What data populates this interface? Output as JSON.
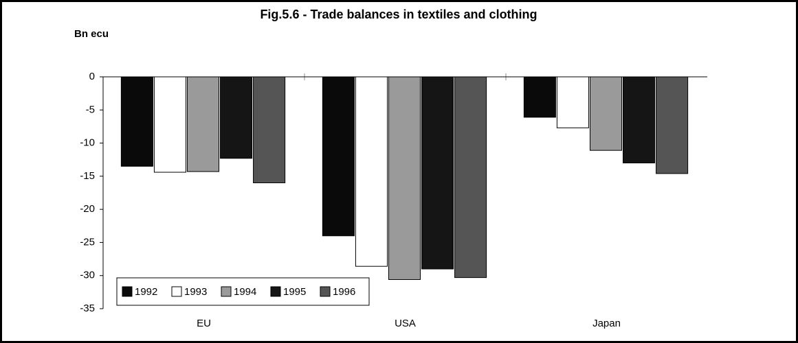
{
  "chart_data": {
    "type": "bar",
    "title": "Fig.5.6 - Trade balances in textiles and clothing",
    "ylabel": "Bn ecu",
    "categories": [
      "EU",
      "USA",
      "Japan"
    ],
    "series": [
      {
        "name": "1992",
        "color": "#0a0a0a",
        "values": [
          -13.5,
          -24.0,
          -6.1
        ]
      },
      {
        "name": "1993",
        "color": "#ffffff",
        "values": [
          -14.4,
          -28.6,
          -7.7
        ]
      },
      {
        "name": "1994",
        "color": "#9a9a9a",
        "values": [
          -14.3,
          -30.6,
          -11.1
        ]
      },
      {
        "name": "1995",
        "color": "#151515",
        "values": [
          -12.3,
          -29.0,
          -13.0
        ]
      },
      {
        "name": "1996",
        "color": "#555555",
        "values": [
          -16.0,
          -30.3,
          -14.6
        ]
      }
    ],
    "ylim": [
      -35,
      0
    ],
    "yticks": [
      -35,
      -30,
      -25,
      -20,
      -15,
      -10,
      -5,
      0
    ],
    "grid": false,
    "legend": "lower left"
  }
}
